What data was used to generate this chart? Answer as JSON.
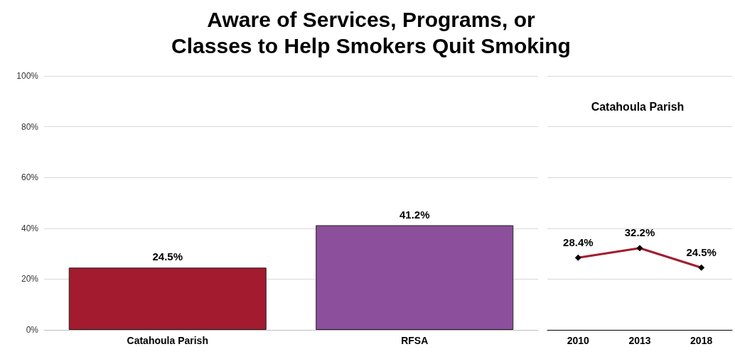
{
  "chart_data": [
    {
      "type": "bar",
      "title": "Aware of Services, Programs, or\nClasses to Help Smokers Quit Smoking",
      "categories": [
        "Catahoula Parish",
        "RFSA"
      ],
      "values": [
        24.5,
        41.2
      ],
      "colors": [
        "#a31b2e",
        "#8b4f9b"
      ],
      "value_labels": [
        "24.5%",
        "41.2%"
      ],
      "ylim": [
        0,
        100
      ],
      "yticks": [
        {
          "value": 0,
          "label": "0%"
        },
        {
          "value": 20,
          "label": "20%"
        },
        {
          "value": 40,
          "label": "40%"
        },
        {
          "value": 60,
          "label": "60%"
        },
        {
          "value": 80,
          "label": "80%"
        },
        {
          "value": 100,
          "label": "100%"
        }
      ],
      "grid": "y"
    },
    {
      "type": "line",
      "title": "Catahoula Parish",
      "categories": [
        "2010",
        "2013",
        "2018"
      ],
      "series": [
        {
          "color": "#a31b2e",
          "values": [
            28.4,
            32.2,
            24.5
          ],
          "value_labels": [
            "28.4%",
            "32.2%",
            "24.5%"
          ]
        }
      ],
      "ylim": [
        0,
        100
      ],
      "yticks": [
        0,
        20,
        40,
        60,
        80,
        100
      ],
      "tick_labels": "x",
      "grid": "y",
      "marker": "diamond",
      "line_style": "solid"
    }
  ]
}
